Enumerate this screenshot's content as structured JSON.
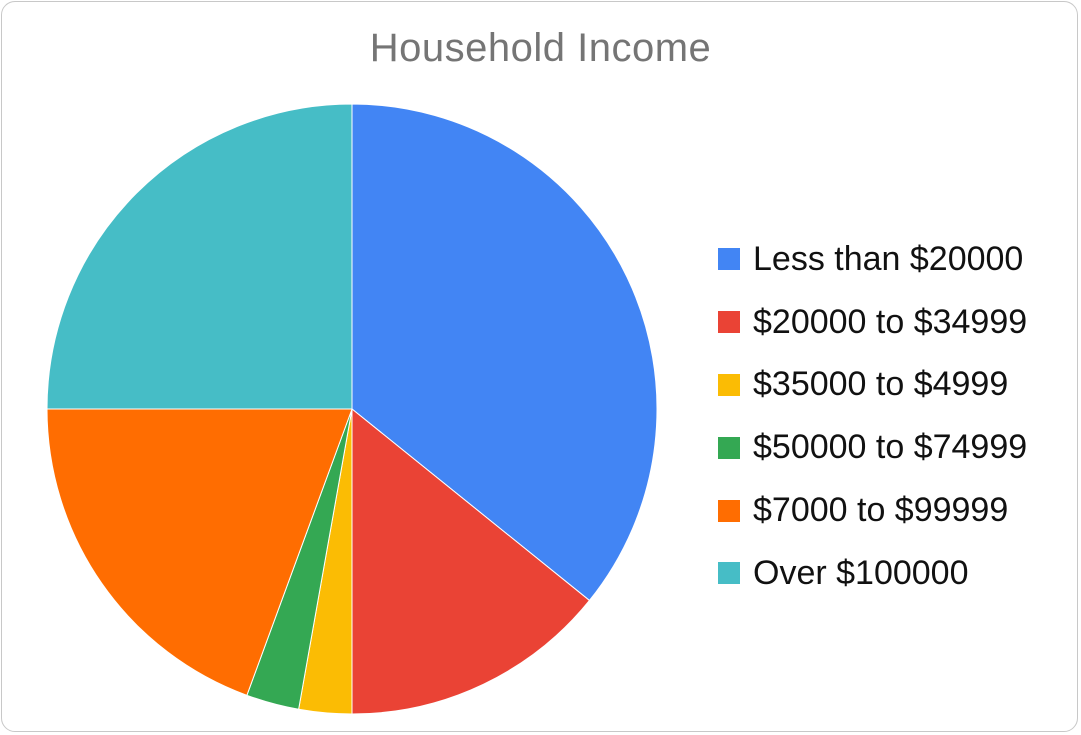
{
  "chart_data": {
    "type": "pie",
    "title": "Household Income",
    "categories": [
      "Less than $20000",
      "$20000 to $34999",
      "$35000 to $4999",
      "$50000 to $74999",
      "$7000 to $99999",
      "Over $100000"
    ],
    "values": [
      35.8,
      14.2,
      2.8,
      2.8,
      19.4,
      25.0
    ],
    "colors": [
      "#4285f4",
      "#ea4335",
      "#fbbc04",
      "#34a853",
      "#ff6d01",
      "#46bdc6"
    ],
    "legend_position": "right"
  }
}
